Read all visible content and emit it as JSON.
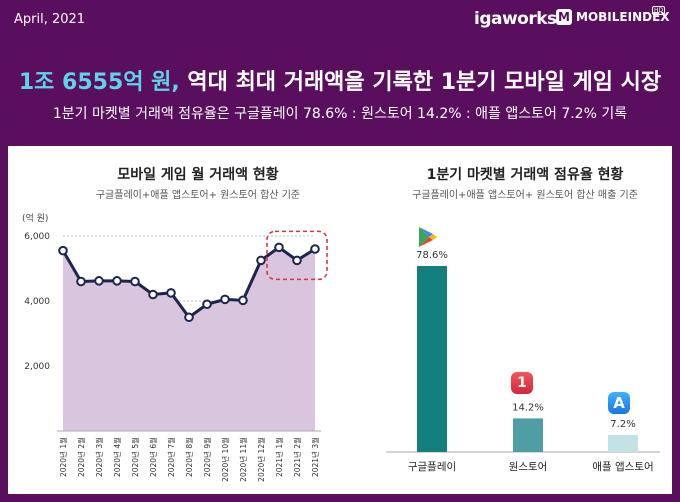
{
  "header": {
    "date": "April, 2021",
    "brand_left": "igaworks",
    "brand_right": "MOBILEINDEX",
    "brand_right_logo": "M",
    "brand_right_badge": "HD",
    "headline_highlight": "1조 6555억 원,",
    "headline_rest": " 역대 최대 거래액을 기록한 1분기 모바일 게임 시장",
    "subheadline": "1분기 마켓별 거래액 점유율은 구글플레이 78.6% : 원스토어 14.2% : 애플 앱스토어 7.2% 기록"
  },
  "colors": {
    "background": "#5a0f5e",
    "highlight": "#5fd3ea",
    "line": "#1c2450",
    "area": "#d9c6de",
    "annotation": "#d23a3a",
    "bar_google": "#13807f",
    "bar_one": "#4f9ea4",
    "bar_apple": "#c2e3e4"
  },
  "chart_data": [
    {
      "type": "line",
      "title": "모바일 게임 월 거래액 현황",
      "subtitle": "구글플레이+애플 앱스토어+ 원스토어 합산 기준",
      "ylabel": "(억 원)",
      "ylim": [
        0,
        6500
      ],
      "yticks": [
        2000,
        4000,
        6000
      ],
      "ytick_labels": [
        "2,000",
        "4,000",
        "6,000"
      ],
      "grid": true,
      "fill_area": true,
      "categories": [
        "2020년 1월",
        "2020년 2월",
        "2020년 3월",
        "2020년 4월",
        "2020년 5월",
        "2020년 6월",
        "2020년 7월",
        "2020년 8월",
        "2020년 9월",
        "2020년 10월",
        "2020년 11월",
        "2020년 12월",
        "2021년 1월",
        "2021년 2월",
        "2021년 3월"
      ],
      "values": [
        5550,
        4600,
        4620,
        4620,
        4600,
        4200,
        4250,
        3500,
        3900,
        4050,
        4020,
        5250,
        5650,
        5250,
        5600
      ],
      "annotation": {
        "type": "dashed-box",
        "from_index": 12,
        "to_index": 14
      }
    },
    {
      "type": "bar",
      "title": "1분기 마켓별 거래액 점유율 현황",
      "subtitle": "구글플레이+애플 앱스토어+ 원스토어 합산 매출 기준",
      "categories": [
        "구글플레이",
        "원스토어",
        "애플 앱스토어"
      ],
      "values": [
        78.6,
        14.2,
        7.2
      ],
      "value_labels": [
        "78.6%",
        "14.2%",
        "7.2%"
      ],
      "icons": [
        "google-play-icon",
        "one-store-icon",
        "app-store-icon"
      ],
      "ylim": [
        0,
        100
      ]
    }
  ]
}
